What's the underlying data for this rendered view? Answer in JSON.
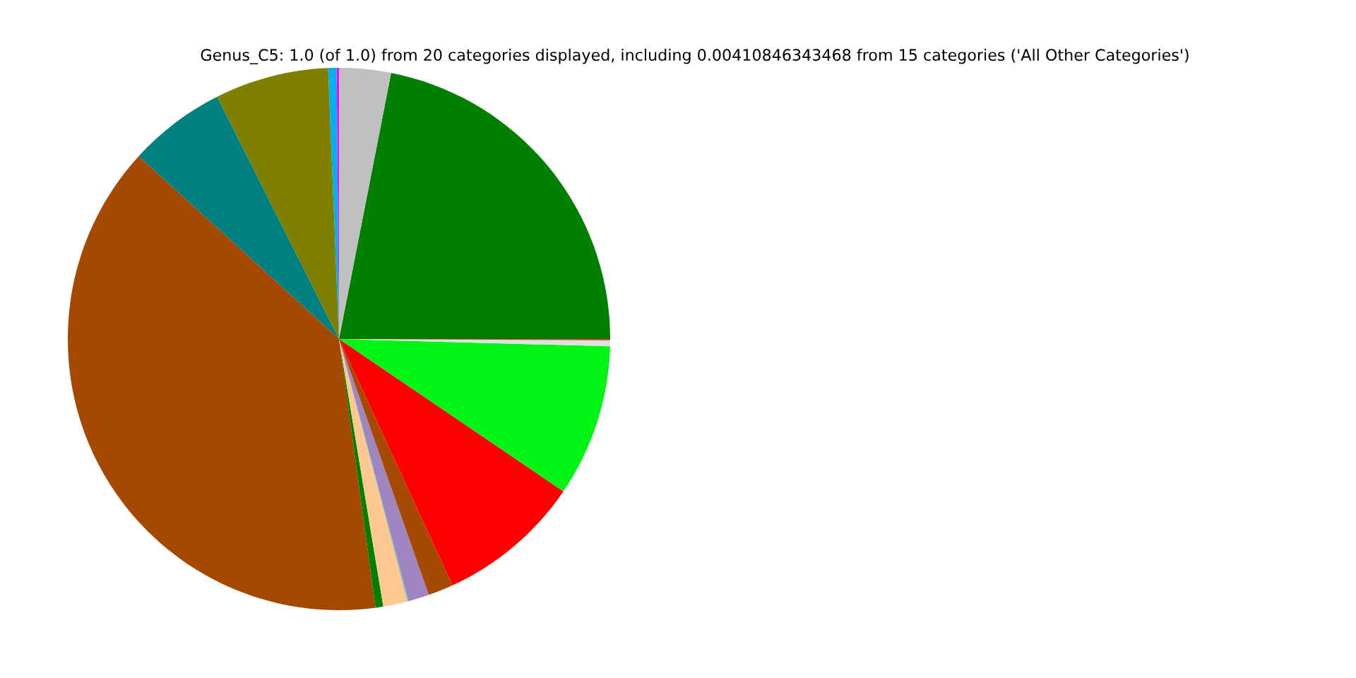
{
  "chart_data": {
    "type": "pie",
    "title": "Genus_C5: 1.0 (of 1.0) from 20 categories displayed, including 0.00410846343468 from 15 categories ('All Other Categories')",
    "categories": [
      null,
      null,
      null,
      null,
      null,
      null,
      null,
      null,
      null,
      null,
      null,
      null,
      null,
      null,
      null,
      null
    ],
    "values": [
      0.14,
      0.5,
      6.78,
      5.81,
      38.92,
      0.46,
      1.43,
      0.08,
      1.25,
      1.5,
      8.64,
      9.06,
      0.36,
      0.06,
      21.93,
      3.08
    ],
    "colors": [
      "#ff00ff",
      "#00b0f0",
      "#808000",
      "#008080",
      "#a54800",
      "#007f00",
      "#ffc890",
      "#90d0a8",
      "#9f86c0",
      "#a44a02",
      "#ff0000",
      "#00f514",
      "#e0e0e0",
      "#fe0202",
      "#008000",
      "#c0c0c0"
    ]
  }
}
